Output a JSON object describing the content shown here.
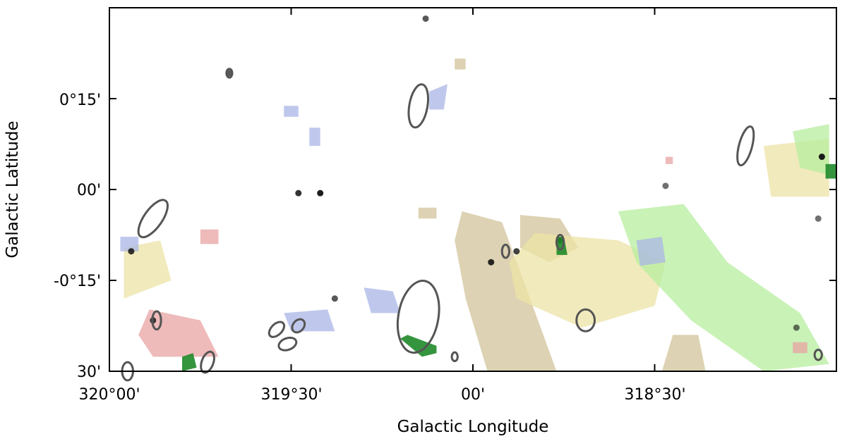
{
  "chart_data": {
    "type": "map",
    "xlabel": "Galactic Longitude",
    "ylabel": "Galactic Latitude",
    "x_ticks": [
      "320°00'",
      "319°30'",
      "00'",
      "318°30'"
    ],
    "y_ticks": [
      "0°15'",
      "00'",
      "-0°15'",
      "30'"
    ],
    "x_tick_values_deg": [
      320.0,
      319.5,
      319.0,
      318.5
    ],
    "y_tick_values_deg": [
      0.25,
      0.0,
      -0.25,
      -0.5
    ],
    "xlim_deg": [
      320.0,
      318.0
    ],
    "ylim_deg": [
      -0.5,
      0.5
    ],
    "grid": false,
    "layers": [
      {
        "name": "red",
        "color": "#e8a3a3"
      },
      {
        "name": "green",
        "color": "#b7ee9f"
      },
      {
        "name": "blue",
        "color": "#a9b6e6"
      },
      {
        "name": "tan",
        "color": "#d2c39a"
      },
      {
        "name": "yellow",
        "color": "#ece3a6"
      }
    ],
    "regions": [
      {
        "layer": "tan",
        "points": [
          [
            319.03,
            -0.06
          ],
          [
            318.92,
            -0.09
          ],
          [
            318.85,
            -0.28
          ],
          [
            318.77,
            -0.5
          ],
          [
            318.96,
            -0.5
          ],
          [
            319.02,
            -0.3
          ],
          [
            319.05,
            -0.14
          ]
        ]
      },
      {
        "layer": "tan",
        "points": [
          [
            318.87,
            -0.07
          ],
          [
            318.76,
            -0.08
          ],
          [
            318.71,
            -0.16
          ],
          [
            318.79,
            -0.2
          ],
          [
            318.87,
            -0.16
          ]
        ]
      },
      {
        "layer": "yellow",
        "points": [
          [
            318.83,
            -0.12
          ],
          [
            318.6,
            -0.14
          ],
          [
            318.47,
            -0.2
          ],
          [
            318.5,
            -0.32
          ],
          [
            318.7,
            -0.38
          ],
          [
            318.88,
            -0.3
          ],
          [
            318.9,
            -0.2
          ]
        ]
      },
      {
        "layer": "yellow",
        "points": [
          [
            318.2,
            0.12
          ],
          [
            318.02,
            0.14
          ],
          [
            318.02,
            -0.02
          ],
          [
            318.18,
            -0.02
          ]
        ]
      },
      {
        "layer": "green",
        "points": [
          [
            318.6,
            -0.06
          ],
          [
            318.42,
            -0.04
          ],
          [
            318.3,
            -0.2
          ],
          [
            318.1,
            -0.34
          ],
          [
            318.02,
            -0.48
          ],
          [
            318.2,
            -0.5
          ],
          [
            318.4,
            -0.36
          ],
          [
            318.55,
            -0.2
          ]
        ]
      },
      {
        "layer": "green",
        "points": [
          [
            318.12,
            0.16
          ],
          [
            318.02,
            0.18
          ],
          [
            318.02,
            0.04
          ],
          [
            318.1,
            0.06
          ]
        ]
      },
      {
        "layer": "blue",
        "points": [
          [
            318.55,
            -0.14
          ],
          [
            318.48,
            -0.13
          ],
          [
            318.47,
            -0.2
          ],
          [
            318.54,
            -0.21
          ]
        ]
      },
      {
        "layer": "red",
        "points": [
          [
            319.89,
            -0.33
          ],
          [
            319.75,
            -0.36
          ],
          [
            319.7,
            -0.46
          ],
          [
            319.88,
            -0.46
          ],
          [
            319.92,
            -0.4
          ]
        ]
      },
      {
        "layer": "yellow",
        "points": [
          [
            319.96,
            -0.16
          ],
          [
            319.86,
            -0.14
          ],
          [
            319.83,
            -0.25
          ],
          [
            319.96,
            -0.3
          ]
        ]
      },
      {
        "layer": "red",
        "points": [
          [
            319.75,
            -0.11
          ],
          [
            319.7,
            -0.11
          ],
          [
            319.7,
            -0.15
          ],
          [
            319.75,
            -0.15
          ]
        ]
      },
      {
        "layer": "blue",
        "points": [
          [
            319.97,
            -0.13
          ],
          [
            319.92,
            -0.13
          ],
          [
            319.92,
            -0.17
          ],
          [
            319.97,
            -0.17
          ]
        ]
      },
      {
        "layer": "blue",
        "points": [
          [
            319.52,
            -0.34
          ],
          [
            319.4,
            -0.33
          ],
          [
            319.38,
            -0.39
          ],
          [
            319.5,
            -0.39
          ]
        ]
      },
      {
        "layer": "blue",
        "points": [
          [
            319.12,
            0.27
          ],
          [
            319.07,
            0.29
          ],
          [
            319.08,
            0.22
          ],
          [
            319.12,
            0.22
          ]
        ]
      },
      {
        "layer": "blue",
        "points": [
          [
            319.52,
            0.23
          ],
          [
            319.48,
            0.23
          ],
          [
            319.48,
            0.2
          ],
          [
            319.52,
            0.2
          ]
        ]
      },
      {
        "layer": "blue",
        "points": [
          [
            319.45,
            0.17
          ],
          [
            319.42,
            0.17
          ],
          [
            319.42,
            0.12
          ],
          [
            319.45,
            0.12
          ]
        ]
      },
      {
        "layer": "blue",
        "points": [
          [
            319.3,
            -0.27
          ],
          [
            319.22,
            -0.28
          ],
          [
            319.2,
            -0.34
          ],
          [
            319.28,
            -0.34
          ]
        ]
      },
      {
        "layer": "tan",
        "points": [
          [
            319.05,
            0.36
          ],
          [
            319.02,
            0.36
          ],
          [
            319.02,
            0.33
          ],
          [
            319.05,
            0.33
          ]
        ]
      },
      {
        "layer": "tan",
        "points": [
          [
            319.15,
            -0.05
          ],
          [
            319.1,
            -0.05
          ],
          [
            319.1,
            -0.08
          ],
          [
            319.15,
            -0.08
          ]
        ]
      },
      {
        "layer": "tan",
        "points": [
          [
            318.45,
            -0.4
          ],
          [
            318.38,
            -0.4
          ],
          [
            318.36,
            -0.5
          ],
          [
            318.48,
            -0.5
          ]
        ]
      },
      {
        "layer": "red",
        "points": [
          [
            318.12,
            -0.42
          ],
          [
            318.08,
            -0.42
          ],
          [
            318.08,
            -0.45
          ],
          [
            318.12,
            -0.45
          ]
        ]
      },
      {
        "layer": "red",
        "points": [
          [
            318.47,
            0.09
          ],
          [
            318.45,
            0.09
          ],
          [
            318.45,
            0.07
          ],
          [
            318.47,
            0.07
          ]
        ]
      }
    ],
    "dark_sources": [
      {
        "l": 319.48,
        "b": -0.01,
        "alpha": 0.85
      },
      {
        "l": 319.42,
        "b": -0.01,
        "alpha": 0.95
      },
      {
        "l": 319.94,
        "b": -0.17,
        "alpha": 0.85
      },
      {
        "l": 318.95,
        "b": -0.2,
        "alpha": 0.9
      },
      {
        "l": 318.88,
        "b": -0.17,
        "alpha": 0.8
      },
      {
        "l": 318.76,
        "b": -0.14,
        "alpha": 0.9
      },
      {
        "l": 318.04,
        "b": 0.09,
        "alpha": 0.95
      },
      {
        "l": 318.47,
        "b": 0.01,
        "alpha": 0.6
      },
      {
        "l": 318.11,
        "b": -0.38,
        "alpha": 0.6
      },
      {
        "l": 319.88,
        "b": -0.36,
        "alpha": 0.8
      },
      {
        "l": 319.38,
        "b": -0.3,
        "alpha": 0.7
      },
      {
        "l": 319.13,
        "b": 0.47,
        "alpha": 0.7
      },
      {
        "l": 318.05,
        "b": -0.08,
        "alpha": 0.6
      },
      {
        "l": 319.67,
        "b": 0.32,
        "alpha": 0.7
      }
    ],
    "green_sources": [
      {
        "points": [
          [
            319.2,
            -0.41
          ],
          [
            319.18,
            -0.4
          ],
          [
            319.1,
            -0.43
          ],
          [
            319.1,
            -0.45
          ],
          [
            319.14,
            -0.46
          ]
        ]
      },
      {
        "points": [
          [
            318.77,
            -0.13
          ],
          [
            318.75,
            -0.13
          ],
          [
            318.74,
            -0.18
          ],
          [
            318.77,
            -0.18
          ]
        ]
      },
      {
        "points": [
          [
            319.8,
            -0.46
          ],
          [
            319.77,
            -0.45
          ],
          [
            319.76,
            -0.49
          ],
          [
            319.8,
            -0.5
          ]
        ]
      },
      {
        "points": [
          [
            318.03,
            0.07
          ],
          [
            318.0,
            0.07
          ],
          [
            318.0,
            0.03
          ],
          [
            318.03,
            0.03
          ]
        ]
      }
    ],
    "ellipses": [
      {
        "l": 318.69,
        "b": -0.36,
        "rl": 0.025,
        "rb": 0.03,
        "angle": 0
      },
      {
        "l": 319.15,
        "b": 0.23,
        "rl": 0.025,
        "rb": 0.06,
        "angle": 10
      },
      {
        "l": 318.25,
        "b": 0.12,
        "rl": 0.018,
        "rb": 0.055,
        "angle": 15
      },
      {
        "l": 319.88,
        "b": -0.08,
        "rl": 0.025,
        "rb": 0.06,
        "angle": 35
      },
      {
        "l": 319.15,
        "b": -0.35,
        "rl": 0.055,
        "rb": 0.1,
        "angle": 10
      },
      {
        "l": 319.48,
        "b": -0.375,
        "rl": 0.015,
        "rb": 0.02,
        "angle": 40
      },
      {
        "l": 319.54,
        "b": -0.385,
        "rl": 0.015,
        "rb": 0.025,
        "angle": 45
      },
      {
        "l": 319.51,
        "b": -0.425,
        "rl": 0.016,
        "rb": 0.025,
        "angle": 70
      },
      {
        "l": 319.73,
        "b": -0.475,
        "rl": 0.016,
        "rb": 0.03,
        "angle": 20
      },
      {
        "l": 319.87,
        "b": -0.36,
        "rl": 0.012,
        "rb": 0.025,
        "angle": 0
      },
      {
        "l": 318.91,
        "b": -0.17,
        "rl": 0.01,
        "rb": 0.018,
        "angle": 0
      },
      {
        "l": 318.76,
        "b": -0.145,
        "rl": 0.01,
        "rb": 0.02,
        "angle": 0
      },
      {
        "l": 319.67,
        "b": 0.32,
        "rl": 0.008,
        "rb": 0.012,
        "angle": 0
      },
      {
        "l": 319.05,
        "b": -0.46,
        "rl": 0.008,
        "rb": 0.012,
        "angle": 0
      },
      {
        "l": 319.95,
        "b": -0.5,
        "rl": 0.015,
        "rb": 0.025,
        "angle": 0
      },
      {
        "l": 318.05,
        "b": -0.455,
        "rl": 0.01,
        "rb": 0.014,
        "angle": 0
      }
    ]
  }
}
